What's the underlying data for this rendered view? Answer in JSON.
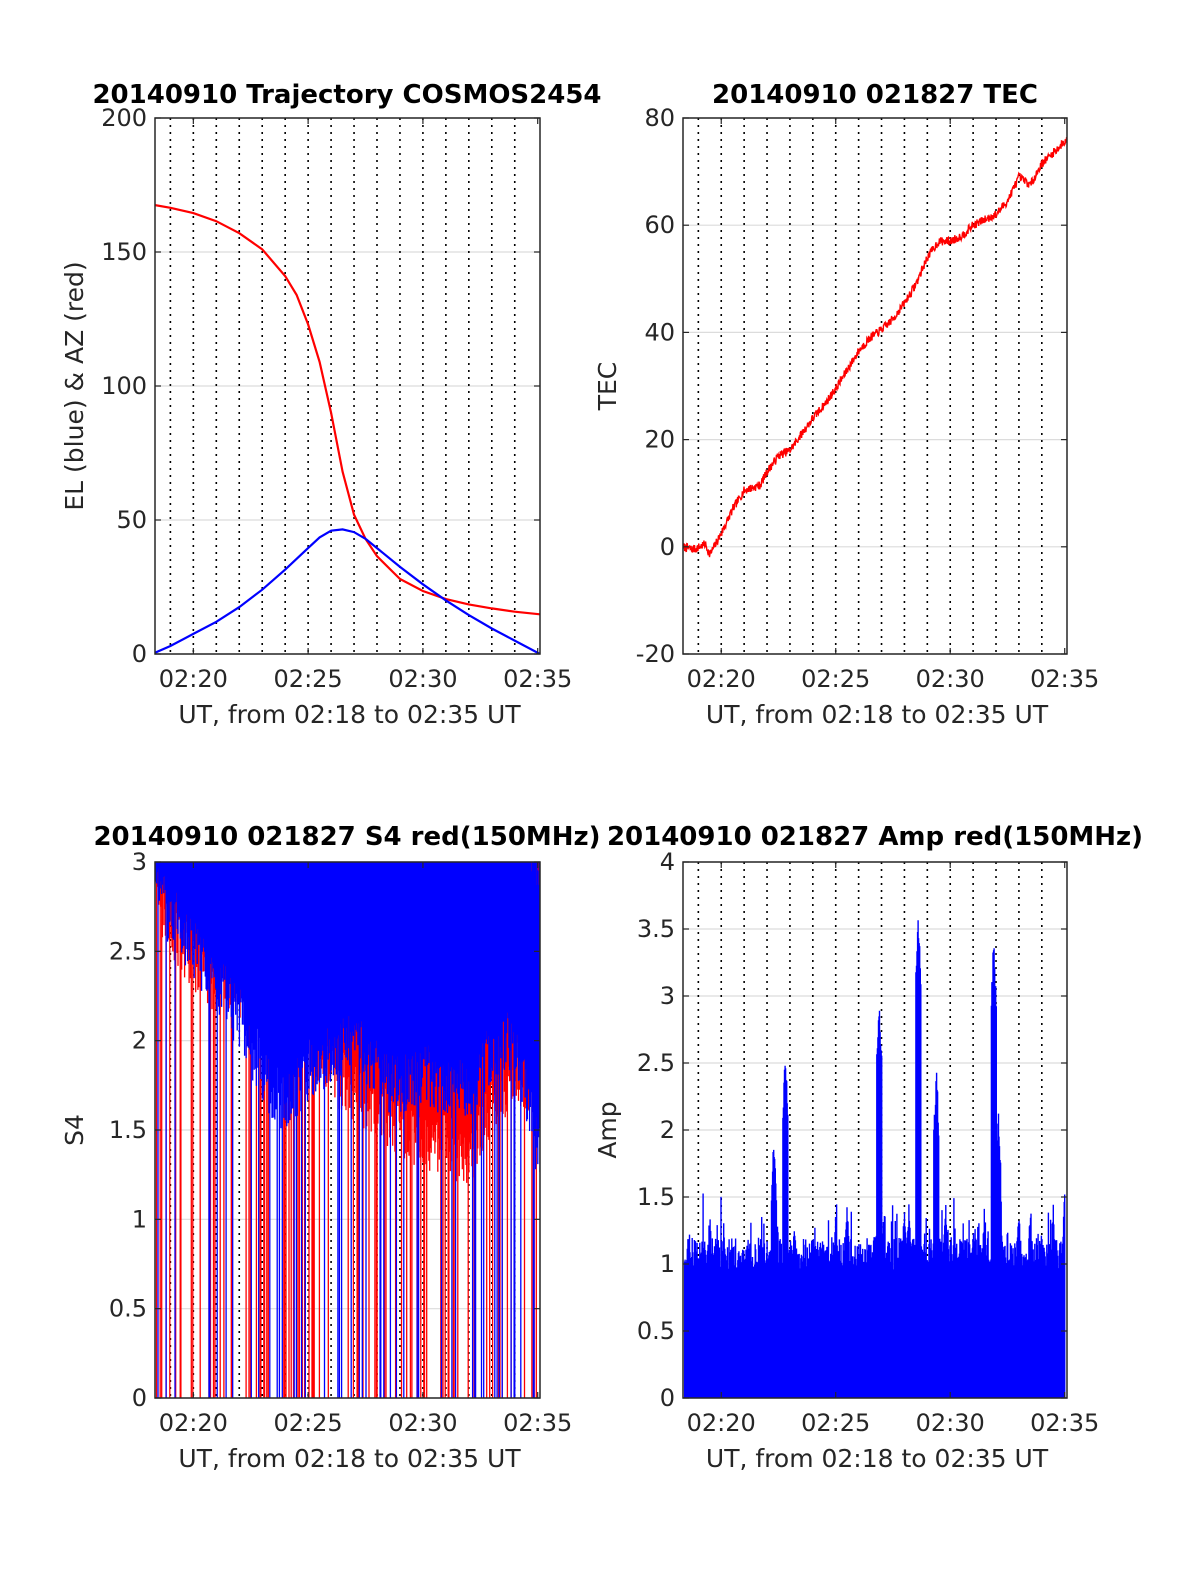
{
  "chart_data": [
    {
      "type": "line",
      "title": "20140910 Trajectory COSMOS2454",
      "xlabel": "UT, from 02:18 to 02:35 UT",
      "ylabel": "EL (blue) & AZ (red)",
      "x_unit": "minutes after 02:00 UT",
      "xlim": [
        18.33,
        35.1
      ],
      "ylim": [
        0,
        200
      ],
      "xticks": [
        20,
        25,
        30,
        35
      ],
      "xtick_labels": [
        "02:20",
        "02:25",
        "02:30",
        "02:35"
      ],
      "yticks": [
        0,
        50,
        100,
        150,
        200
      ],
      "ytick_labels": [
        "0",
        "50",
        "100",
        "150",
        "200"
      ],
      "grid": true,
      "series": [
        {
          "color": "#ff0000",
          "x": [
            18.33,
            19.0,
            20.0,
            21.0,
            22.0,
            23.0,
            24.0,
            24.5,
            25.0,
            25.5,
            26.0,
            26.5,
            27.0,
            27.5,
            28.0,
            29.0,
            30.0,
            31.0,
            32.0,
            33.0,
            34.0,
            35.1
          ],
          "y": [
            167.5,
            166.5,
            164.5,
            161.5,
            157.0,
            151.0,
            141.0,
            134.0,
            123.0,
            109.0,
            90.0,
            68.0,
            52.0,
            43.0,
            36.5,
            28.0,
            23.5,
            20.5,
            18.5,
            17.0,
            15.8,
            14.8
          ]
        },
        {
          "color": "#0000ff",
          "x": [
            18.33,
            19.0,
            20.0,
            21.0,
            22.0,
            23.0,
            24.0,
            25.0,
            25.5,
            26.0,
            26.5,
            27.0,
            27.5,
            28.0,
            29.0,
            30.0,
            31.0,
            32.0,
            33.0,
            34.0,
            35.1
          ],
          "y": [
            0.5,
            3.0,
            7.5,
            12.0,
            17.5,
            24.0,
            31.5,
            39.5,
            43.5,
            46.0,
            46.5,
            45.5,
            43.0,
            39.5,
            32.5,
            26.0,
            20.0,
            14.5,
            9.5,
            5.0,
            0.0
          ]
        }
      ]
    },
    {
      "type": "line",
      "title": "20140910 021827 TEC",
      "xlabel": "UT, from 02:18 to 02:35 UT",
      "ylabel": "TEC",
      "x_unit": "minutes after 02:00 UT",
      "xlim": [
        18.33,
        35.1
      ],
      "ylim": [
        -20,
        80
      ],
      "xticks": [
        20,
        25,
        30,
        35
      ],
      "xtick_labels": [
        "02:20",
        "02:25",
        "02:30",
        "02:35"
      ],
      "yticks": [
        -20,
        0,
        20,
        40,
        60,
        80
      ],
      "ytick_labels": [
        "-20",
        "0",
        "20",
        "40",
        "60",
        "80"
      ],
      "grid": true,
      "series": [
        {
          "color": "#ff0000",
          "x": [
            18.33,
            18.8,
            19.3,
            19.5,
            20.0,
            20.5,
            21.0,
            21.7,
            22.0,
            22.5,
            23.0,
            23.5,
            24.0,
            24.5,
            25.0,
            25.5,
            26.0,
            26.5,
            27.0,
            27.5,
            28.0,
            28.5,
            29.0,
            29.5,
            30.0,
            30.5,
            31.0,
            31.5,
            32.0,
            32.5,
            33.0,
            33.5,
            34.0,
            34.5,
            35.1
          ],
          "y": [
            0.0,
            -0.5,
            0.5,
            -1.5,
            2.5,
            7.0,
            10.5,
            11.5,
            14.0,
            17.0,
            18.0,
            21.0,
            24.0,
            26.5,
            29.5,
            33.0,
            36.5,
            39.0,
            40.5,
            42.5,
            45.5,
            49.0,
            54.0,
            57.0,
            57.0,
            58.0,
            60.0,
            61.0,
            62.0,
            64.5,
            69.0,
            67.5,
            71.5,
            73.5,
            76.0
          ]
        }
      ]
    },
    {
      "type": "line",
      "title": "20140910 021827 S4 red(150MHz)",
      "xlabel": "UT, from 02:18 to 02:35 UT",
      "ylabel": "S4",
      "x_unit": "minutes after 02:00 UT",
      "xlim": [
        18.33,
        35.1
      ],
      "ylim": [
        0,
        3
      ],
      "xticks": [
        20,
        25,
        30,
        35
      ],
      "xtick_labels": [
        "02:20",
        "02:25",
        "02:30",
        "02:35"
      ],
      "yticks": [
        0,
        0.5,
        1,
        1.5,
        2,
        2.5,
        3
      ],
      "ytick_labels": [
        "0",
        "0.5",
        "1",
        "1.5",
        "2",
        "2.5",
        "3"
      ],
      "grid": true,
      "series": [
        {
          "color": "#ff0000",
          "x": [
            18.33,
            20.0,
            21.0,
            22.0,
            23.0,
            24.0,
            25.0,
            26.0,
            27.0,
            28.0,
            29.0,
            30.0,
            31.0,
            32.0,
            33.0,
            34.0,
            35.1
          ],
          "y": [
            3.0,
            2.6,
            2.5,
            2.4,
            2.4,
            2.3,
            2.2,
            2.0,
            1.9,
            1.8,
            1.7,
            1.6,
            1.6,
            1.5,
            1.8,
            2.0,
            1.9
          ]
        },
        {
          "color": "#0000ff",
          "x": [
            18.33,
            20.0,
            21.0,
            22.0,
            23.0,
            24.0,
            25.0,
            26.0,
            27.0,
            28.0,
            29.0,
            30.0,
            31.0,
            32.0,
            33.0,
            34.0,
            35.1
          ],
          "y": [
            3.0,
            2.7,
            2.5,
            2.3,
            2.0,
            1.8,
            2.0,
            2.1,
            2.2,
            2.0,
            1.9,
            2.0,
            1.9,
            1.9,
            2.1,
            2.2,
            1.5
          ]
        }
      ]
    },
    {
      "type": "line",
      "title": "20140910 021827 Amp red(150MHz)",
      "xlabel": "UT, from 02:18 to 02:35 UT",
      "ylabel": "Amp",
      "x_unit": "minutes after 02:00 UT",
      "xlim": [
        18.33,
        35.1
      ],
      "ylim": [
        0,
        4
      ],
      "xticks": [
        20,
        25,
        30,
        35
      ],
      "xtick_labels": [
        "02:20",
        "02:25",
        "02:30",
        "02:35"
      ],
      "yticks": [
        0,
        0.5,
        1,
        1.5,
        2,
        2.5,
        3,
        3.5,
        4
      ],
      "ytick_labels": [
        "0",
        "0.5",
        "1",
        "1.5",
        "2",
        "2.5",
        "3",
        "3.5",
        "4"
      ],
      "grid": true,
      "series": [
        {
          "color": "#0000ff",
          "x": [
            18.4,
            19.5,
            20.5,
            21.5,
            22.3,
            22.8,
            23.2,
            24.0,
            25.0,
            25.5,
            26.0,
            26.9,
            27.3,
            28.0,
            28.2,
            28.6,
            29.1,
            29.4,
            29.8,
            30.5,
            31.0,
            31.5,
            31.9,
            32.1,
            32.5,
            33.0,
            33.5,
            34.0,
            34.5,
            35.0
          ],
          "y": [
            1.1,
            1.45,
            1.2,
            1.1,
            2.0,
            2.6,
            1.4,
            1.2,
            1.4,
            1.5,
            1.2,
            3.0,
            1.3,
            1.5,
            1.5,
            3.65,
            1.3,
            2.5,
            1.5,
            1.3,
            1.3,
            1.5,
            3.45,
            2.2,
            1.3,
            1.5,
            1.5,
            1.3,
            1.5,
            1.6
          ]
        }
      ]
    }
  ]
}
